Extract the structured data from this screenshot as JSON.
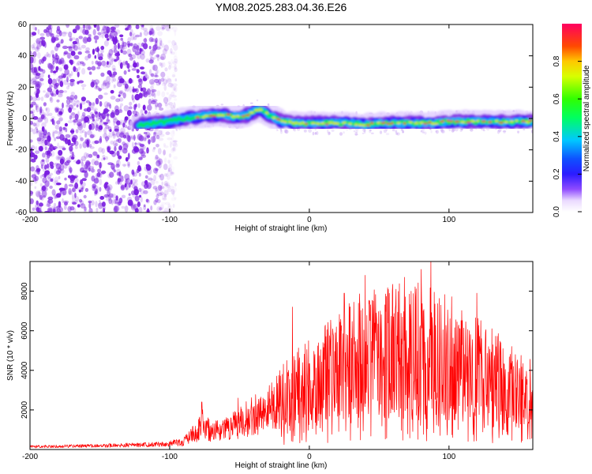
{
  "title": "YM08.2025.283.04.36.E26",
  "colors": {
    "signal": "#ff0000",
    "scatter": "#7a1de0"
  },
  "chart_data": [
    {
      "type": "heatmap",
      "name": "spectrogram",
      "xlabel": "Height of straight line (km)",
      "ylabel": "Frequency (Hz)",
      "xlim": [
        -200,
        160
      ],
      "ylim": [
        -60,
        60
      ],
      "xticks": [
        -200,
        -100,
        0,
        100
      ],
      "yticks": [
        -60,
        -40,
        -20,
        0,
        20,
        40,
        60
      ],
      "colorbar": {
        "label": "Normalized spectral amplitude",
        "range": [
          0,
          1
        ],
        "ticks": [
          0.0,
          0.2,
          0.4,
          0.6,
          0.8
        ]
      },
      "ridge": {
        "x": [
          -122,
          -110,
          -100,
          -90,
          -80,
          -70,
          -60,
          -50,
          -45,
          -40,
          -36,
          -32,
          -28,
          -24,
          -20,
          -10,
          0,
          10,
          20,
          30,
          40,
          50,
          60,
          70,
          80,
          90,
          100,
          110,
          120,
          130,
          140,
          150,
          160
        ],
        "y": [
          -4,
          -3,
          -2,
          0,
          1,
          2,
          2,
          1,
          2,
          4,
          6,
          4,
          2,
          0,
          -2,
          -3,
          -3,
          -3,
          -3,
          -3,
          -4,
          -3,
          -3,
          -3,
          -3,
          -3,
          -2,
          -2,
          -2,
          -2,
          -2,
          -2,
          -2
        ]
      },
      "noise_region_x": [
        -200,
        -100
      ]
    },
    {
      "type": "line",
      "name": "snr",
      "xlabel": "Height of straight line (km)",
      "ylabel": "SNR (10 * v/v)",
      "xlim": [
        -200,
        160
      ],
      "ylim": [
        0,
        9500
      ],
      "xticks": [
        -200,
        -100,
        0,
        100
      ],
      "yticks": [
        2000,
        4000,
        6000,
        8000
      ],
      "series": [
        {
          "name": "SNR",
          "envelope": {
            "x": [
              -200,
              -150,
              -120,
              -100,
              -90,
              -80,
              -76,
              -70,
              -60,
              -50,
              -40,
              -30,
              -20,
              -10,
              0,
              10,
              20,
              30,
              40,
              50,
              60,
              70,
              80,
              90,
              100,
              110,
              120,
              130,
              140,
              150,
              160
            ],
            "y": [
              150,
              200,
              250,
              300,
              600,
              1500,
              2200,
              1400,
              1600,
              2200,
              2700,
              3300,
              4200,
              5000,
              5600,
              6500,
              7200,
              7700,
              8000,
              8200,
              8400,
              8400,
              8500,
              8300,
              8000,
              7400,
              6800,
              6200,
              5600,
              5000,
              4600
            ]
          },
          "peaks": {
            "x": [
              -77,
              -51,
              -12,
              25,
              40,
              62,
              68,
              80,
              87,
              120
            ],
            "y": [
              2400,
              2600,
              7200,
              7900,
              8800,
              8100,
              8700,
              9100,
              9500,
              7900
            ]
          }
        }
      ]
    }
  ]
}
